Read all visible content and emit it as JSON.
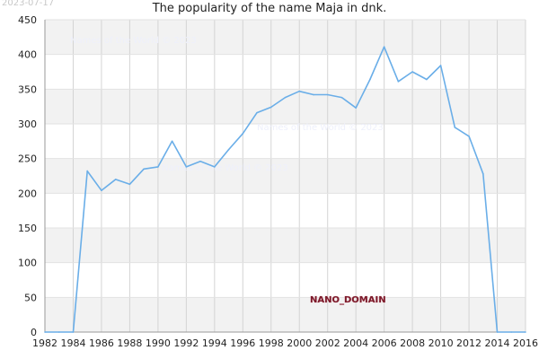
{
  "header": {
    "stamp": "2023-07-17"
  },
  "watermarks": {
    "text": "Names of the World © 2023",
    "domain": "NANO_DOMAIN"
  },
  "chart_data": {
    "type": "line",
    "title": "The popularity of the name Maja in dnk.",
    "xlabel": "",
    "ylabel": "",
    "xlim": [
      1982,
      2016
    ],
    "ylim": [
      0,
      450
    ],
    "x_ticks": [
      1982,
      1984,
      1986,
      1988,
      1990,
      1992,
      1994,
      1996,
      1998,
      2000,
      2002,
      2004,
      2006,
      2008,
      2010,
      2012,
      2014,
      2016
    ],
    "y_ticks": [
      0,
      50,
      100,
      150,
      200,
      250,
      300,
      350,
      400,
      450
    ],
    "grid": true,
    "line_color": "#6aaee8",
    "band_color": "#f2f2f2",
    "series": [
      {
        "x": [
          1982,
          1983,
          1984,
          1985,
          1986,
          1987,
          1988,
          1989,
          1990,
          1991,
          1992,
          1993,
          1994,
          1995,
          1996,
          1997,
          1998,
          1999,
          2000,
          2001,
          2002,
          2003,
          2004,
          2005,
          2006,
          2007,
          2008,
          2009,
          2010,
          2011,
          2012,
          2013,
          2014,
          2015,
          2016
        ],
        "values": [
          0,
          0,
          0,
          232,
          204,
          220,
          213,
          235,
          238,
          275,
          238,
          246,
          238,
          263,
          286,
          316,
          324,
          338,
          347,
          342,
          342,
          338,
          323,
          364,
          411,
          361,
          375,
          364,
          384,
          295,
          282,
          228,
          0,
          0,
          0
        ]
      }
    ]
  }
}
